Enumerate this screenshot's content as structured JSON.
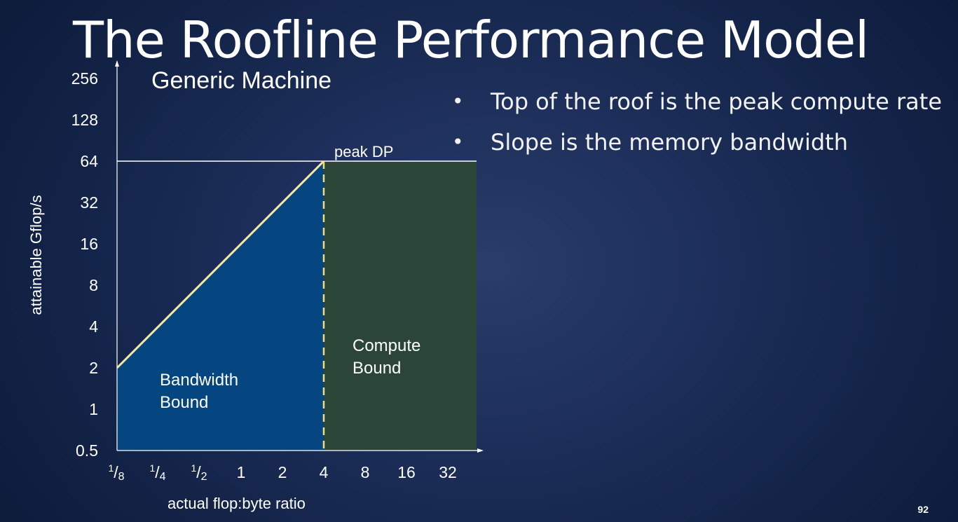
{
  "slide": {
    "title": "The Roofline Performance Model",
    "bullets": [
      "Top of the roof is the peak compute rate",
      "Slope is the memory bandwidth"
    ],
    "page_number": "92"
  },
  "colors": {
    "background": "#142449",
    "bandwidth_region": "#064680",
    "compute_region": "#2b4539",
    "roof_line": "#f6e7a6",
    "text": "#ffffff"
  },
  "chart_data": {
    "type": "line",
    "title": "Generic Machine",
    "xlabel": "actual flop:byte ratio",
    "ylabel": "attainable Gflop/s",
    "x_scale": "log2",
    "y_scale": "log2",
    "x_ticks": [
      0.125,
      0.25,
      0.5,
      1,
      2,
      4,
      8,
      16,
      32
    ],
    "x_tick_labels": [
      {
        "num": "1",
        "den": "8"
      },
      {
        "num": "1",
        "den": "4"
      },
      {
        "num": "1",
        "den": "2"
      },
      {
        "text": "1"
      },
      {
        "text": "2"
      },
      {
        "text": "4"
      },
      {
        "text": "8"
      },
      {
        "text": "16"
      },
      {
        "text": "32"
      }
    ],
    "y_ticks": [
      0.5,
      1,
      2,
      4,
      8,
      16,
      32,
      64,
      256
    ],
    "y_tick_labels": [
      "0.5",
      "1",
      "2",
      "4",
      "8",
      "16",
      "32",
      "64",
      "256"
    ],
    "y_ticks_extra": [
      128
    ],
    "y_tick_labels_extra": [
      "128"
    ],
    "xlim": [
      0.125,
      64
    ],
    "ylim": [
      0.5,
      256
    ],
    "series": [
      {
        "points": [
          {
            "x": 0.125,
            "y": 2
          },
          {
            "x": 4,
            "y": 64
          },
          {
            "x": 64,
            "y": 64
          }
        ]
      }
    ],
    "ridge_point": {
      "x": 4,
      "y": 64
    },
    "annotations": {
      "peak": "peak DP",
      "bandwidth_region": [
        "Bandwidth",
        "Bound"
      ],
      "compute_region": [
        "Compute",
        "Bound"
      ]
    }
  }
}
